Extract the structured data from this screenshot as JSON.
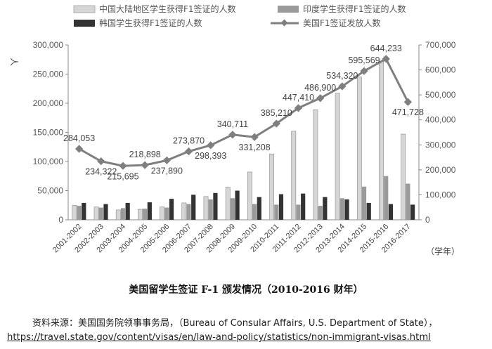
{
  "chart_data": {
    "type": "bar",
    "title": "美国留学生签证 F-1 颁发情况（2010-2016 财年）",
    "y_left_label": "人",
    "y_right_label": "",
    "x_unit_label": "（学年）",
    "categories": [
      "2001-2002",
      "2002-2003",
      "2003-2004",
      "2004-2005",
      "2005-2006",
      "2006-2007",
      "2007-2008",
      "2008-2009",
      "2009-2010",
      "2010-2011",
      "2011-2012",
      "2012-2013",
      "2013-2014",
      "2014-2015",
      "2015-2016",
      "2016-2017"
    ],
    "y_left_ticks": [
      "0",
      "50,000",
      "100,000",
      "150,000",
      "200,000",
      "250,000",
      "300,000"
    ],
    "y_right_ticks": [
      "0",
      "100,000",
      "200,000",
      "300,000",
      "400,000",
      "500,000",
      "600,000",
      "700,000"
    ],
    "ylim_left": [
      0,
      300000
    ],
    "ylim_right": [
      0,
      700000
    ],
    "grid": false,
    "legend_position": "top",
    "series": [
      {
        "name": "中国大陆地区学生获得F1签证的人数",
        "type": "bar",
        "axis": "left",
        "color": "#d6d6d6",
        "values": [
          25000,
          22000,
          17000,
          18000,
          22000,
          29000,
          40000,
          56000,
          82000,
          113000,
          152000,
          189000,
          217000,
          245000,
          272000,
          147000
        ]
      },
      {
        "name": "印度学生获得F1签证的人数",
        "type": "bar",
        "axis": "left",
        "color": "#9a9a9a",
        "values": [
          24000,
          21000,
          20000,
          19000,
          21000,
          27000,
          35000,
          37000,
          27000,
          26000,
          26000,
          24000,
          37000,
          57000,
          75000,
          62000
        ]
      },
      {
        "name": "韩国学生获得F1签证的人数",
        "type": "bar",
        "axis": "left",
        "color": "#333333",
        "values": [
          29000,
          27000,
          29000,
          30000,
          36000,
          43000,
          46000,
          50000,
          39000,
          44000,
          45000,
          39000,
          35000,
          29000,
          27000,
          26000
        ]
      },
      {
        "name": "美国F1签证发放人数",
        "type": "line",
        "axis": "right",
        "color": "#7f7f7f",
        "values": [
          284053,
          234322,
          215695,
          218898,
          237890,
          273870,
          298393,
          340711,
          331208,
          385210,
          447410,
          486900,
          534320,
          595569,
          644233,
          471728
        ],
        "labels": [
          "284,053",
          "234,322",
          "215,695",
          "218,898",
          "237,890",
          "273,870",
          "298,393",
          "340,711",
          "331,208",
          "385,210",
          "447,410",
          "486,900",
          "534,320",
          "595,569",
          "644,233",
          "471,728"
        ]
      }
    ]
  },
  "source_line": "资料来源：美国国务院领事事务局，（Bureau of Consular Affairs, U.S. Department of State），",
  "source_url": "https://travel.state.gov/content/visas/en/law-and-policy/statistics/non-immigrant-visas.html"
}
